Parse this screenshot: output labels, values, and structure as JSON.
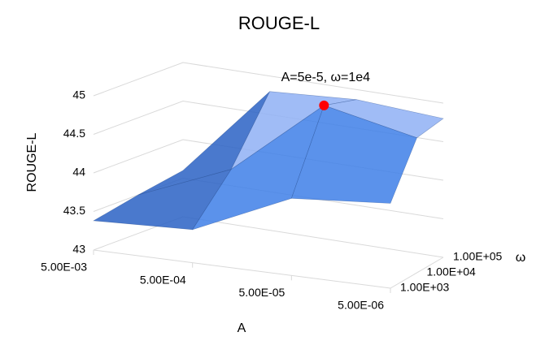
{
  "chart_data": {
    "type": "surface",
    "title": "ROUGE-L",
    "xlabel": "A",
    "ylabel": "ROUGE-L",
    "serieslabel": "ω",
    "categories": [
      "5.00E-03",
      "5.00E-04",
      "5.00E-05",
      "5.00E-06"
    ],
    "series": [
      {
        "name": "1.00E+03",
        "values": [
          43.38,
          43.43,
          44.0,
          44.1
        ]
      },
      {
        "name": "1.00E+04",
        "values": [
          43.5,
          44.0,
          45.0,
          44.75
        ]
      },
      {
        "name": "1.00E+05",
        "values": [
          43.6,
          44.8,
          44.87,
          44.8
        ]
      }
    ],
    "ylim": [
      43,
      45
    ],
    "yticks": [
      43,
      43.5,
      44,
      44.5,
      45
    ],
    "grid": true,
    "band_colors": [
      "#1f4f9e",
      "#2a62c4",
      "#3e7fe8",
      "#8fb0f4"
    ],
    "annotation": {
      "text": "A=5e-5, ω=1e4",
      "x": "5.00E-05",
      "series": "1.00E+04",
      "color": "#ff0000"
    }
  }
}
